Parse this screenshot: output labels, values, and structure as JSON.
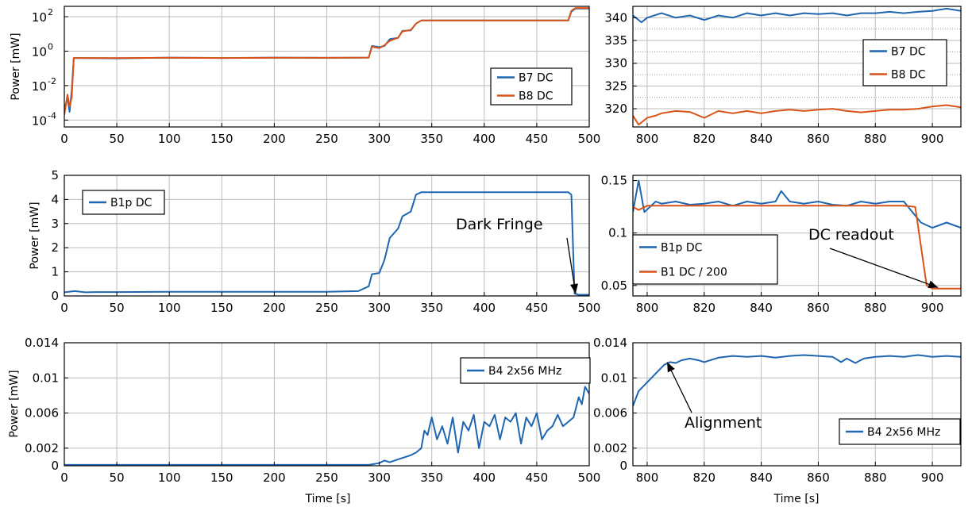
{
  "figure": {
    "panels_count": 6
  },
  "colors": {
    "blue": "#1f66b0",
    "orange": "#d95319",
    "grid": "#bdbdbd",
    "axis": "#000000"
  },
  "chart_data": [
    {
      "id": "p1",
      "type": "line",
      "xlabel": "",
      "ylabel": "Power [mW]",
      "xlim": [
        0,
        500
      ],
      "ylim_log10": [
        -4.4,
        2.6
      ],
      "yscale": "log",
      "xticks": [
        0,
        50,
        100,
        150,
        200,
        250,
        300,
        350,
        400,
        450,
        500
      ],
      "yticks": [
        {
          "value": 0.0001,
          "base": "10",
          "exp": "-4"
        },
        {
          "value": 0.01,
          "base": "10",
          "exp": "-2"
        },
        {
          "value": 1,
          "base": "10",
          "exp": "0"
        },
        {
          "value": 100,
          "base": "10",
          "exp": "2"
        }
      ],
      "grid": true,
      "legend": {
        "placement": "right",
        "entries": [
          "B7 DC",
          "B8 DC"
        ]
      },
      "series": [
        {
          "name": "B7 DC",
          "color": "blue",
          "x": [
            0,
            3,
            5,
            7,
            9,
            10,
            50,
            100,
            150,
            200,
            250,
            290,
            293,
            300,
            305,
            310,
            318,
            322,
            330,
            335,
            340,
            350,
            400,
            450,
            480,
            483,
            487,
            500
          ],
          "y": [
            0.0004,
            0.002,
            0.0003,
            0.005,
            0.4,
            0.4,
            0.38,
            0.42,
            0.4,
            0.42,
            0.41,
            0.42,
            2,
            1.7,
            2,
            5,
            6,
            15,
            16,
            40,
            60,
            60,
            60,
            60,
            60,
            200,
            300,
            300
          ]
        },
        {
          "name": "B8 DC",
          "color": "orange",
          "x": [
            0,
            3,
            5,
            7,
            9,
            10,
            50,
            100,
            150,
            200,
            250,
            290,
            293,
            300,
            305,
            310,
            318,
            322,
            330,
            335,
            340,
            350,
            400,
            450,
            480,
            483,
            487,
            500
          ],
          "y": [
            0.0002,
            0.003,
            0.0006,
            0.002,
            0.4,
            0.4,
            0.4,
            0.41,
            0.4,
            0.41,
            0.41,
            0.42,
            1.8,
            1.5,
            2.2,
            4,
            6,
            14,
            17,
            40,
            60,
            60,
            60,
            60,
            60,
            220,
            320,
            320
          ]
        }
      ]
    },
    {
      "id": "p2",
      "type": "line",
      "xlabel": "",
      "ylabel": "",
      "xlim": [
        795,
        910
      ],
      "ylim": [
        316,
        342.5
      ],
      "xticks": [
        800,
        820,
        840,
        860,
        880,
        900
      ],
      "yticks": [
        320,
        325,
        330,
        335,
        340
      ],
      "grid": true,
      "legend": {
        "placement": "right",
        "entries": [
          "B7 DC",
          "B8 DC"
        ]
      },
      "series": [
        {
          "name": "B7 DC",
          "color": "blue",
          "x": [
            795,
            798,
            800,
            805,
            810,
            815,
            820,
            825,
            830,
            835,
            840,
            845,
            850,
            855,
            860,
            865,
            870,
            875,
            880,
            885,
            890,
            895,
            900,
            905,
            910
          ],
          "y": [
            340.5,
            339,
            340,
            341,
            340,
            340.5,
            339.5,
            340.5,
            340,
            341,
            340.5,
            341,
            340.5,
            341,
            340.8,
            341,
            340.5,
            341,
            341,
            341.3,
            341,
            341.3,
            341.5,
            342,
            341.5
          ]
        },
        {
          "name": "B8 DC",
          "color": "orange",
          "x": [
            795,
            797,
            800,
            803,
            805,
            810,
            815,
            820,
            825,
            830,
            835,
            840,
            845,
            850,
            855,
            860,
            865,
            870,
            875,
            880,
            885,
            890,
            895,
            900,
            905,
            910
          ],
          "y": [
            318.5,
            316.5,
            318,
            318.5,
            319,
            319.5,
            319.3,
            318,
            319.5,
            319,
            319.5,
            319,
            319.5,
            319.8,
            319.5,
            319.8,
            320,
            319.5,
            319.2,
            319.5,
            319.8,
            319.8,
            320,
            320.5,
            320.8,
            320.3
          ]
        }
      ]
    },
    {
      "id": "p3",
      "type": "line",
      "xlabel": "",
      "ylabel": "Power [mW]",
      "xlim": [
        0,
        500
      ],
      "ylim": [
        0,
        5
      ],
      "xticks": [
        0,
        50,
        100,
        150,
        200,
        250,
        300,
        350,
        400,
        450,
        500
      ],
      "yticks": [
        0,
        1,
        2,
        3,
        4,
        5
      ],
      "grid": true,
      "legend": {
        "placement": "top-left",
        "entries": [
          "B1p DC"
        ]
      },
      "annotation": {
        "text": "Dark Fringe",
        "x": 487,
        "y": 0.1
      },
      "series": [
        {
          "name": "B1p DC",
          "color": "blue",
          "x": [
            0,
            10,
            20,
            30,
            50,
            100,
            150,
            200,
            250,
            280,
            290,
            293,
            300,
            305,
            310,
            318,
            322,
            330,
            335,
            340,
            350,
            400,
            450,
            480,
            483,
            486,
            490,
            500
          ],
          "y": [
            0.15,
            0.2,
            0.15,
            0.16,
            0.16,
            0.17,
            0.17,
            0.17,
            0.17,
            0.2,
            0.4,
            0.9,
            0.95,
            1.5,
            2.4,
            2.8,
            3.3,
            3.5,
            4.2,
            4.3,
            4.3,
            4.3,
            4.3,
            4.3,
            4.2,
            0.1,
            0.05,
            0.05
          ]
        }
      ]
    },
    {
      "id": "p4",
      "type": "line",
      "xlabel": "",
      "ylabel": "",
      "xlim": [
        795,
        910
      ],
      "ylim": [
        0.04,
        0.155
      ],
      "xticks": [
        800,
        820,
        840,
        860,
        880,
        900
      ],
      "yticks": [
        0.05,
        0.1,
        0.15
      ],
      "grid": true,
      "legend": {
        "placement": "bottom-left",
        "entries": [
          "B1p DC",
          "B1 DC / 200"
        ]
      },
      "annotation": {
        "text": "DC readout",
        "x": 902,
        "y": 0.048
      },
      "series": [
        {
          "name": "B1p DC",
          "color": "blue",
          "x": [
            795,
            797,
            799,
            801,
            803,
            805,
            810,
            815,
            820,
            825,
            830,
            835,
            840,
            845,
            847,
            850,
            855,
            860,
            865,
            870,
            875,
            880,
            885,
            890,
            893,
            896,
            900,
            905,
            910
          ],
          "y": [
            0.12,
            0.15,
            0.12,
            0.125,
            0.13,
            0.128,
            0.13,
            0.127,
            0.128,
            0.13,
            0.126,
            0.13,
            0.128,
            0.13,
            0.14,
            0.13,
            0.128,
            0.13,
            0.127,
            0.126,
            0.13,
            0.128,
            0.13,
            0.13,
            0.12,
            0.11,
            0.105,
            0.11,
            0.105
          ]
        },
        {
          "name": "B1 DC / 200",
          "color": "orange",
          "x": [
            795,
            797,
            800,
            890,
            894,
            898,
            900,
            910
          ],
          "y": [
            0.125,
            0.122,
            0.126,
            0.126,
            0.125,
            0.05,
            0.047,
            0.047
          ]
        }
      ]
    },
    {
      "id": "p5",
      "type": "line",
      "xlabel": "Time [s]",
      "ylabel": "Power [mW]",
      "xlim": [
        0,
        500
      ],
      "ylim": [
        0,
        0.014
      ],
      "xticks": [
        0,
        50,
        100,
        150,
        200,
        250,
        300,
        350,
        400,
        450,
        500
      ],
      "yticks": [
        0,
        0.002,
        0.006,
        0.01,
        0.014
      ],
      "grid": true,
      "legend": {
        "placement": "top-right",
        "entries": [
          "B4 2x56 MHz"
        ]
      },
      "series": [
        {
          "name": "B4 2x56 MHz",
          "color": "blue",
          "x": [
            0,
            100,
            200,
            290,
            300,
            305,
            310,
            320,
            330,
            335,
            340,
            343,
            346,
            350,
            355,
            360,
            365,
            370,
            375,
            380,
            385,
            390,
            395,
            400,
            405,
            410,
            415,
            420,
            425,
            430,
            435,
            440,
            445,
            450,
            455,
            460,
            465,
            470,
            475,
            480,
            485,
            490,
            493,
            496,
            500
          ],
          "y": [
            0.0001,
            0.0001,
            0.0001,
            0.0001,
            0.0003,
            0.0006,
            0.0004,
            0.0008,
            0.0012,
            0.0015,
            0.002,
            0.004,
            0.0035,
            0.0055,
            0.003,
            0.0045,
            0.0025,
            0.0055,
            0.0015,
            0.005,
            0.004,
            0.0058,
            0.002,
            0.005,
            0.0045,
            0.0058,
            0.003,
            0.0055,
            0.005,
            0.006,
            0.0025,
            0.0055,
            0.0045,
            0.006,
            0.003,
            0.004,
            0.0045,
            0.0058,
            0.0045,
            0.005,
            0.0055,
            0.0078,
            0.007,
            0.009,
            0.0082
          ]
        }
      ]
    },
    {
      "id": "p6",
      "type": "line",
      "xlabel": "Time [s]",
      "ylabel": "",
      "xlim": [
        795,
        910
      ],
      "ylim": [
        0,
        0.014
      ],
      "xticks": [
        800,
        820,
        840,
        860,
        880,
        900
      ],
      "yticks": [
        0,
        0.002,
        0.006,
        0.01,
        0.014
      ],
      "grid": true,
      "legend": {
        "placement": "bottom-right",
        "entries": [
          "B4 2x56 MHz"
        ]
      },
      "annotation": {
        "text": "Alignment",
        "x": 807,
        "y": 0.0118
      },
      "series": [
        {
          "name": "B4 2x56 MHz",
          "color": "blue",
          "x": [
            795,
            797,
            800,
            803,
            806,
            808,
            810,
            812,
            815,
            818,
            820,
            825,
            830,
            835,
            840,
            845,
            850,
            855,
            860,
            865,
            868,
            870,
            873,
            876,
            880,
            885,
            890,
            895,
            900,
            905,
            910
          ],
          "y": [
            0.0068,
            0.0085,
            0.0095,
            0.0105,
            0.0115,
            0.0118,
            0.0117,
            0.012,
            0.0122,
            0.012,
            0.0118,
            0.0123,
            0.0125,
            0.0124,
            0.0125,
            0.0123,
            0.0125,
            0.0126,
            0.0125,
            0.0124,
            0.0118,
            0.0122,
            0.0117,
            0.0122,
            0.0124,
            0.0125,
            0.0124,
            0.0126,
            0.0124,
            0.0125,
            0.0124
          ]
        }
      ]
    }
  ]
}
